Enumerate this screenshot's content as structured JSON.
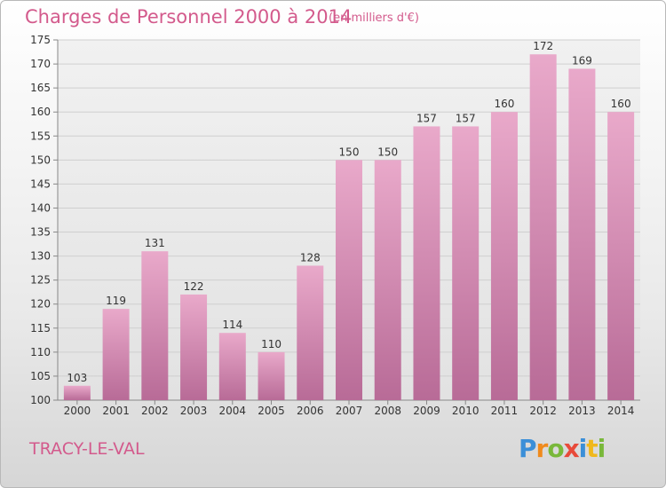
{
  "chart_data": {
    "type": "bar",
    "title": "Charges de Personnel 2000 à 2014",
    "subtitle": "(en milliers d'€)",
    "categories": [
      "2000",
      "2001",
      "2002",
      "2003",
      "2004",
      "2005",
      "2006",
      "2007",
      "2008",
      "2009",
      "2010",
      "2011",
      "2012",
      "2013",
      "2014"
    ],
    "values": [
      103,
      119,
      131,
      122,
      114,
      110,
      128,
      150,
      150,
      157,
      157,
      160,
      172,
      169,
      160
    ],
    "ylim": [
      100,
      175
    ],
    "yticks": [
      100,
      105,
      110,
      115,
      120,
      125,
      130,
      135,
      140,
      145,
      150,
      155,
      160,
      165,
      170,
      175
    ],
    "grid": true,
    "bar_color": "#dc8fb7"
  },
  "footer": {
    "place": "TRACY-LE-VAL",
    "logo_letters": [
      "P",
      "r",
      "o",
      "x",
      "i",
      "t",
      "i"
    ],
    "logo_colors": [
      "#3b8fd8",
      "#f08a1c",
      "#79b83a",
      "#e84a3a",
      "#3b8fd8",
      "#f0b81c",
      "#79b83a"
    ]
  }
}
